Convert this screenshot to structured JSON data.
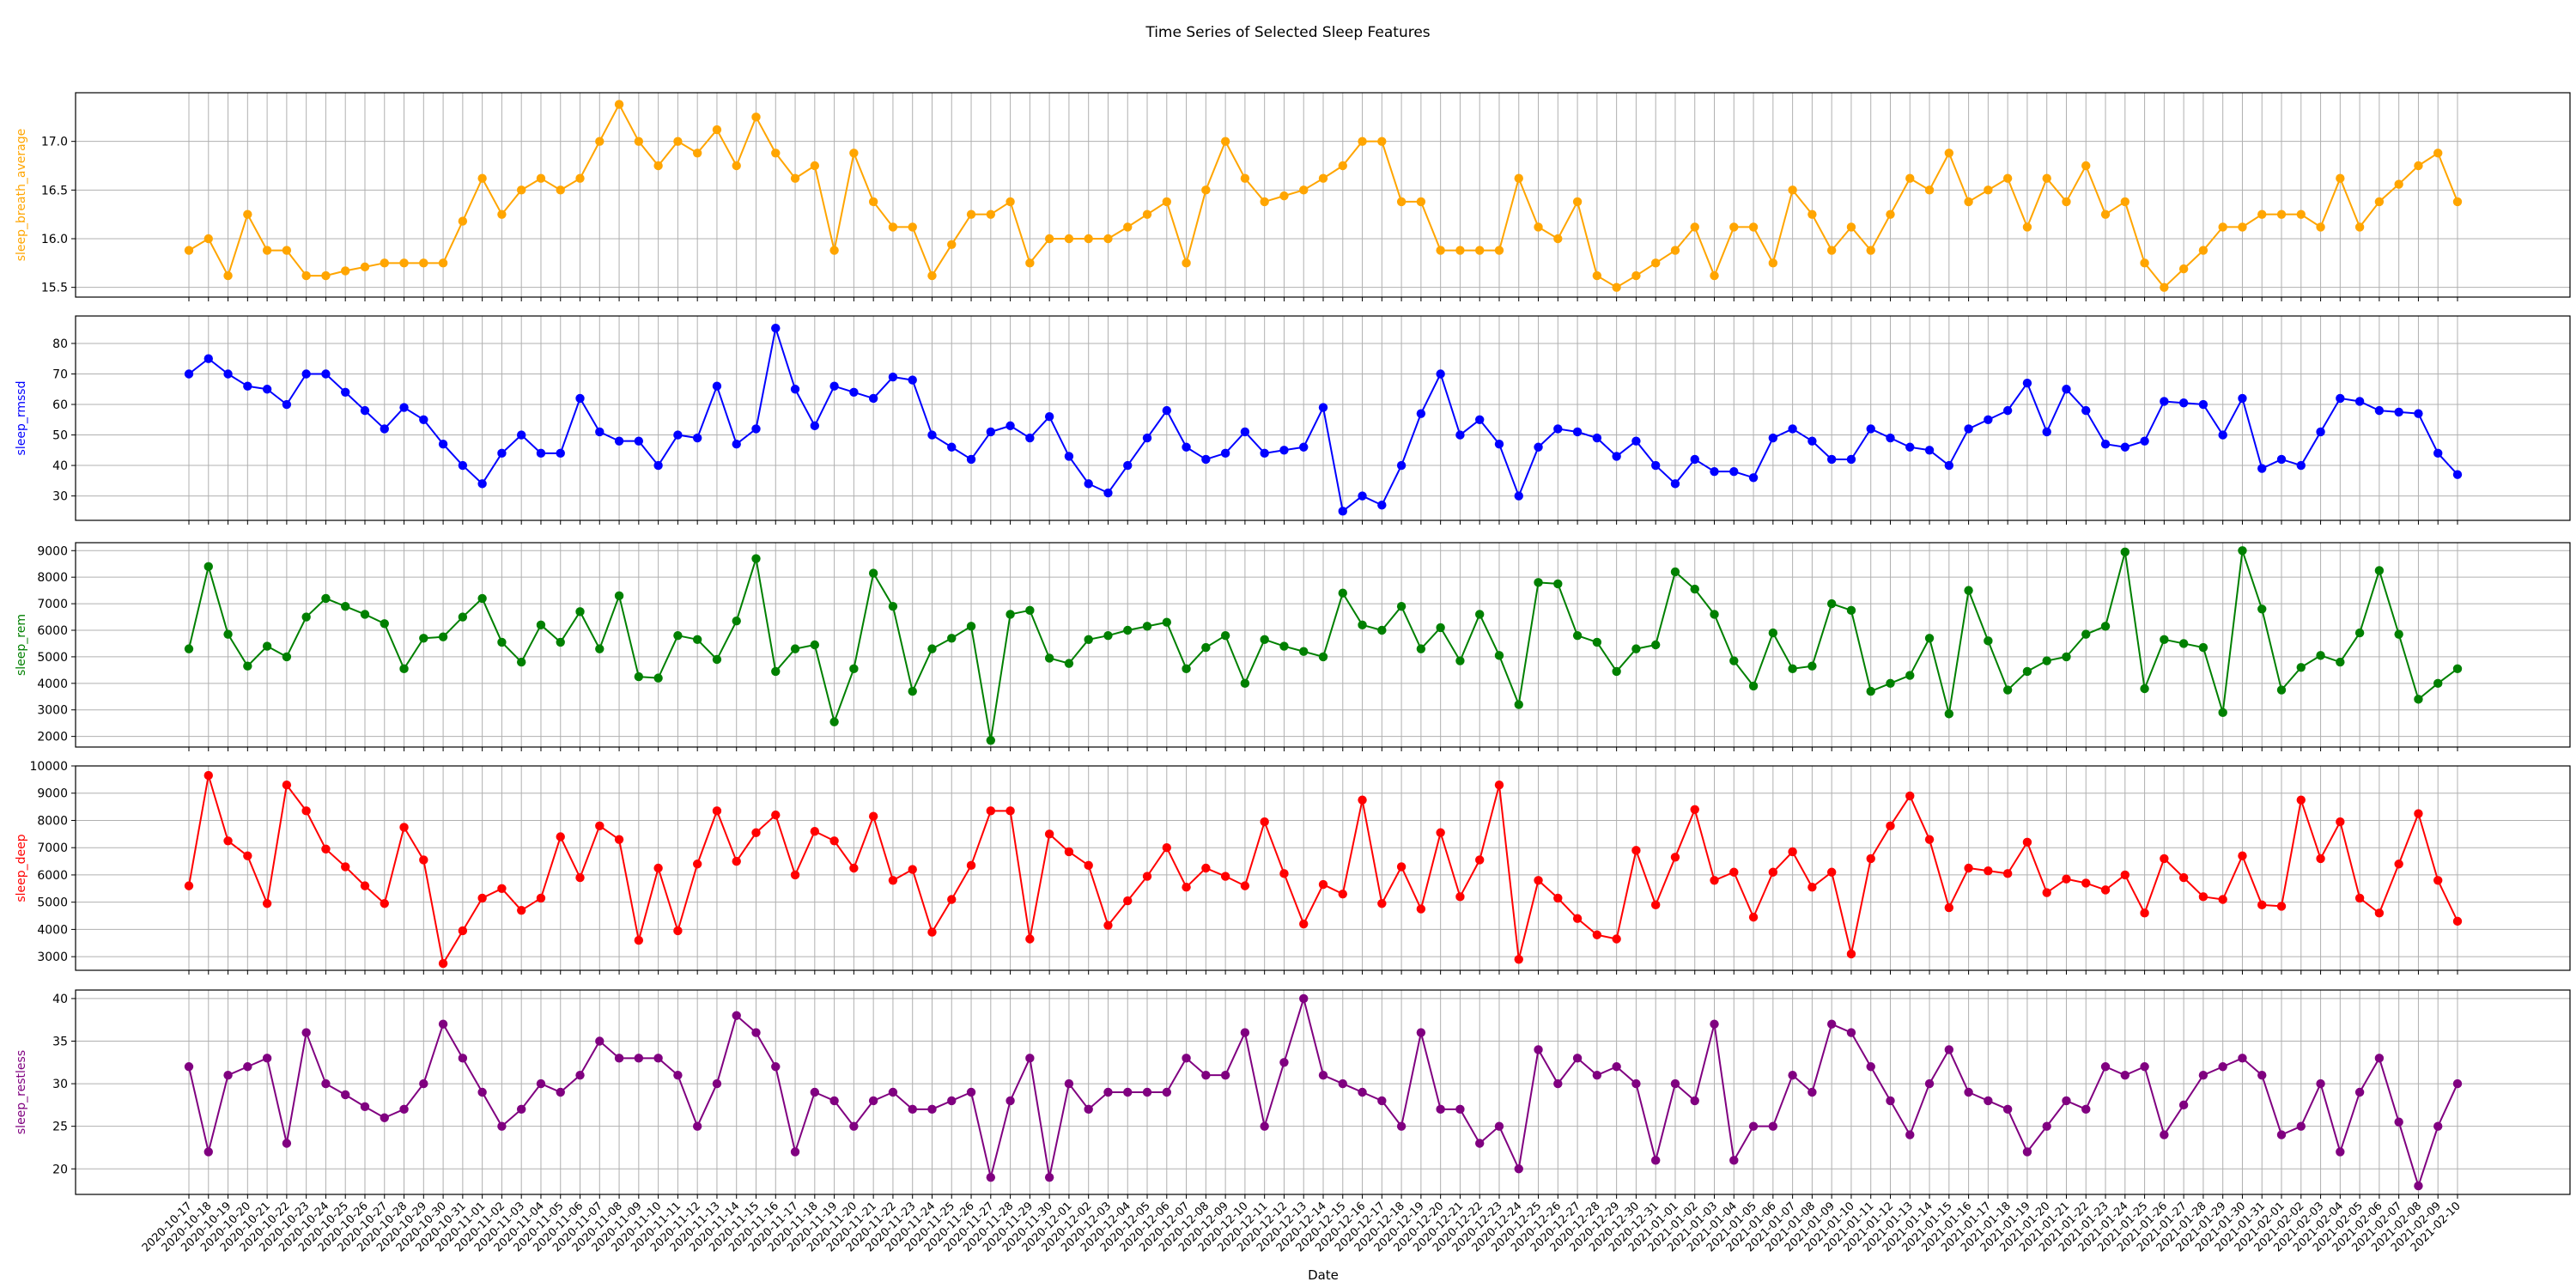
{
  "chart_data": {
    "type": "line",
    "title": "Time Series of Selected Sleep Features",
    "xlabel": "Date",
    "x": [
      "2020-10-17",
      "2020-10-18",
      "2020-10-19",
      "2020-10-20",
      "2020-10-21",
      "2020-10-22",
      "2020-10-23",
      "2020-10-24",
      "2020-10-25",
      "2020-10-26",
      "2020-10-27",
      "2020-10-28",
      "2020-10-29",
      "2020-10-30",
      "2020-10-31",
      "2020-11-01",
      "2020-11-02",
      "2020-11-03",
      "2020-11-04",
      "2020-11-05",
      "2020-11-06",
      "2020-11-07",
      "2020-11-08",
      "2020-11-09",
      "2020-11-10",
      "2020-11-11",
      "2020-11-12",
      "2020-11-13",
      "2020-11-14",
      "2020-11-15",
      "2020-11-16",
      "2020-11-17",
      "2020-11-18",
      "2020-11-19",
      "2020-11-20",
      "2020-11-21",
      "2020-11-22",
      "2020-11-23",
      "2020-11-24",
      "2020-11-25",
      "2020-11-26",
      "2020-11-27",
      "2020-11-28",
      "2020-11-29",
      "2020-11-30",
      "2020-12-01",
      "2020-12-02",
      "2020-12-03",
      "2020-12-04",
      "2020-12-05",
      "2020-12-06",
      "2020-12-07",
      "2020-12-08",
      "2020-12-09",
      "2020-12-10",
      "2020-12-11",
      "2020-12-12",
      "2020-12-13",
      "2020-12-14",
      "2020-12-15",
      "2020-12-16",
      "2020-12-17",
      "2020-12-18",
      "2020-12-19",
      "2020-12-20",
      "2020-12-21",
      "2020-12-22",
      "2020-12-23",
      "2020-12-24",
      "2020-12-25",
      "2020-12-26",
      "2020-12-27",
      "2020-12-28",
      "2020-12-29",
      "2020-12-30",
      "2020-12-31",
      "2021-01-01",
      "2021-01-02",
      "2021-01-03",
      "2021-01-04",
      "2021-01-05",
      "2021-01-06",
      "2021-01-07",
      "2021-01-08",
      "2021-01-09",
      "2021-01-10",
      "2021-01-11",
      "2021-01-12",
      "2021-01-13",
      "2021-01-14",
      "2021-01-15",
      "2021-01-16",
      "2021-01-17",
      "2021-01-18",
      "2021-01-19",
      "2021-01-20",
      "2021-01-21",
      "2021-01-22",
      "2021-01-23",
      "2021-01-24",
      "2021-01-25",
      "2021-01-26",
      "2021-01-27",
      "2021-01-28",
      "2021-01-29",
      "2021-01-30",
      "2021-01-31",
      "2021-02-01",
      "2021-02-02",
      "2021-02-03",
      "2021-02-04",
      "2021-02-05",
      "2021-02-06",
      "2021-02-07",
      "2021-02-08",
      "2021-02-09",
      "2021-02-10"
    ],
    "grid": true,
    "panels": [
      {
        "ylabel": "sleep_breath_average",
        "color": "#ffa500",
        "ylim": [
          15.4,
          17.5
        ],
        "yticks": [
          "15.5",
          "16.0",
          "16.5",
          "17.0"
        ],
        "values": [
          15.88,
          16.0,
          15.62,
          16.25,
          15.88,
          15.88,
          15.62,
          15.62,
          15.67,
          15.71,
          15.75,
          15.75,
          15.75,
          15.75,
          16.18,
          16.62,
          16.25,
          16.5,
          16.62,
          16.5,
          16.62,
          17.0,
          17.38,
          17.0,
          16.75,
          17.0,
          16.88,
          17.12,
          16.75,
          17.25,
          16.88,
          16.62,
          16.75,
          15.88,
          16.88,
          16.38,
          16.12,
          16.12,
          15.62,
          15.94,
          16.25,
          16.25,
          16.38,
          15.75,
          16.0,
          16.0,
          16.0,
          16.0,
          16.12,
          16.25,
          16.38,
          15.75,
          16.5,
          17.0,
          16.62,
          16.38,
          16.44,
          16.5,
          16.62,
          16.75,
          17.0,
          17.0,
          16.38,
          16.38,
          15.88,
          15.88,
          15.88,
          15.88,
          16.62,
          16.12,
          16.0,
          16.38,
          15.62,
          15.5,
          15.62,
          15.75,
          15.88,
          16.12,
          15.62,
          16.12,
          16.12,
          15.75,
          16.5,
          16.25,
          15.88,
          16.12,
          15.88,
          16.25,
          16.62,
          16.5,
          16.88,
          16.38,
          16.5,
          16.62,
          16.12,
          16.62,
          16.38,
          16.75,
          16.25,
          16.38,
          15.75,
          15.5,
          15.69,
          15.88,
          16.12,
          16.12,
          16.25,
          16.25,
          16.25,
          16.12,
          16.62,
          16.12,
          16.38,
          16.56,
          16.75,
          16.88,
          16.38
        ]
      },
      {
        "ylabel": "sleep_rmssd",
        "color": "#0000ff",
        "ylim": [
          22,
          89
        ],
        "yticks": [
          "30",
          "40",
          "50",
          "60",
          "70",
          "80"
        ],
        "values": [
          70,
          75,
          70,
          66,
          65,
          60,
          70,
          70,
          64,
          58,
          52,
          59,
          55,
          47,
          40,
          34,
          44,
          50,
          44,
          44,
          62,
          51,
          48,
          48,
          40,
          50,
          49,
          66,
          47,
          52,
          85,
          65,
          53,
          66,
          64,
          62,
          69,
          68,
          50,
          46,
          42,
          51,
          53,
          49,
          56,
          43,
          34,
          31,
          40,
          49,
          58,
          46,
          42,
          44,
          51,
          44,
          45,
          46,
          59,
          25,
          30,
          27,
          40,
          57,
          70,
          50,
          55,
          47,
          30,
          46,
          52,
          51,
          49,
          43,
          48,
          40,
          34,
          42,
          38,
          38,
          36,
          49,
          52,
          48,
          42,
          42,
          52,
          49,
          46,
          45,
          40,
          52,
          55,
          58,
          67,
          51,
          65,
          58,
          47,
          46,
          48,
          61,
          60.5,
          60,
          50,
          62,
          39,
          42,
          40,
          51,
          62,
          61,
          58,
          57.5,
          57,
          44,
          37
        ]
      },
      {
        "ylabel": "sleep_rem",
        "color": "#008000",
        "ylim": [
          1600,
          9300
        ],
        "yticks": [
          "2000",
          "3000",
          "4000",
          "5000",
          "6000",
          "7000",
          "8000",
          "9000"
        ],
        "values": [
          5300,
          8400,
          5850,
          4650,
          5400,
          5000,
          6500,
          7200,
          6900,
          6600,
          6250,
          4550,
          5700,
          5750,
          6500,
          7200,
          5550,
          4800,
          6200,
          5550,
          6700,
          5300,
          7300,
          4250,
          4200,
          5800,
          5650,
          4900,
          6350,
          8700,
          4450,
          5300,
          5450,
          2550,
          4550,
          8150,
          6900,
          3700,
          5300,
          5700,
          6150,
          1850,
          6600,
          6750,
          4950,
          4750,
          5650,
          5800,
          6000,
          6150,
          6300,
          4550,
          5350,
          5800,
          4000,
          5650,
          5400,
          5200,
          5000,
          7400,
          6200,
          6000,
          6900,
          5300,
          6100,
          4850,
          6600,
          5050,
          3200,
          7800,
          7750,
          5800,
          5550,
          4450,
          5300,
          5450,
          8200,
          7550,
          6600,
          4850,
          3900,
          5900,
          4550,
          4650,
          7000,
          6750,
          3700,
          4000,
          4300,
          5700,
          2850,
          7500,
          5600,
          3750,
          4450,
          4850,
          5000,
          5850,
          6150,
          8950,
          3800,
          5650,
          5500,
          5350,
          2900,
          9000,
          6800,
          3750,
          4600,
          5050,
          4800,
          5900,
          8250,
          5850,
          3400,
          4000,
          4550
        ]
      },
      {
        "ylabel": "sleep_deep",
        "color": "#ff0000",
        "ylim": [
          2500,
          10000
        ],
        "yticks": [
          "3000",
          "4000",
          "5000",
          "6000",
          "7000",
          "8000",
          "9000",
          "10000"
        ],
        "values": [
          5600,
          9650,
          7250,
          6700,
          4950,
          9300,
          8350,
          6950,
          6300,
          5600,
          4950,
          7750,
          6550,
          2750,
          3950,
          5150,
          5500,
          4700,
          5150,
          7400,
          5900,
          7800,
          7300,
          3600,
          6250,
          3950,
          6400,
          8350,
          6500,
          7550,
          8200,
          6000,
          7600,
          7250,
          6250,
          8150,
          5800,
          6200,
          3900,
          5100,
          6350,
          8350,
          8350,
          3650,
          7500,
          6850,
          6350,
          4150,
          5050,
          5950,
          7000,
          5550,
          6250,
          5950,
          5600,
          7950,
          6050,
          4200,
          5650,
          5300,
          8750,
          4950,
          6300,
          4750,
          7550,
          5200,
          6550,
          9300,
          2900,
          5800,
          5150,
          4400,
          3800,
          3650,
          6900,
          4900,
          6650,
          8400,
          5800,
          6100,
          4450,
          6100,
          6850,
          5550,
          6100,
          3100,
          6600,
          7800,
          8900,
          7300,
          4800,
          6250,
          6150,
          6050,
          7200,
          5350,
          5850,
          5700,
          5450,
          6000,
          4600,
          6600,
          5900,
          5200,
          5100,
          6700,
          4900,
          4850,
          8750,
          6600,
          7950,
          5150,
          4600,
          6400,
          8250,
          5800,
          4300
        ]
      },
      {
        "ylabel": "sleep_restless",
        "color": "#800080",
        "ylim": [
          17,
          41
        ],
        "yticks": [
          "20",
          "25",
          "30",
          "35",
          "40"
        ],
        "values": [
          32,
          22,
          31,
          32,
          33,
          23,
          36,
          30,
          28.7,
          27.3,
          26,
          27,
          30,
          37,
          33,
          29,
          25,
          27,
          30,
          29,
          31,
          35,
          33,
          33,
          33,
          31,
          25,
          30,
          38,
          36,
          32,
          22,
          29,
          28,
          25,
          28,
          29,
          27,
          27,
          28,
          29,
          19,
          28,
          33,
          19,
          30,
          27,
          29,
          29,
          29,
          29,
          33,
          31,
          31,
          36,
          25,
          32.5,
          40,
          31,
          30,
          29,
          28,
          25,
          36,
          27,
          27,
          23,
          25,
          20,
          34,
          30,
          33,
          31,
          32,
          30,
          21,
          30,
          28,
          37,
          21,
          25,
          25,
          31,
          29,
          37,
          36,
          32,
          28,
          24,
          30,
          34,
          29,
          28,
          27,
          22,
          25,
          28,
          27,
          32,
          31,
          32,
          24,
          27.5,
          31,
          32,
          33,
          31,
          24,
          25,
          30,
          22,
          29,
          33,
          25.5,
          18,
          25,
          30
        ]
      }
    ]
  }
}
